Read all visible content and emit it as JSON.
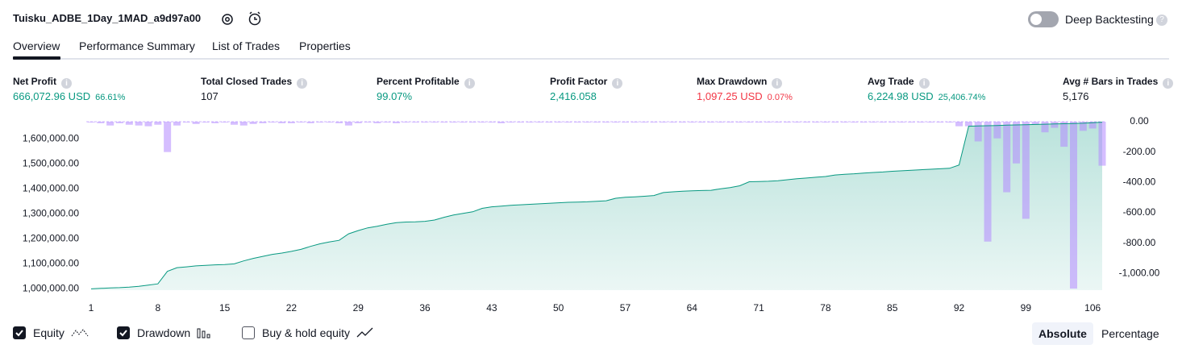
{
  "header": {
    "title": "Tuisku_ADBE_1Day_1MAD_a9d97a00",
    "deep_backtesting": "Deep Backtesting"
  },
  "tabs": [
    "Overview",
    "Performance Summary",
    "List of Trades",
    "Properties"
  ],
  "metrics": [
    {
      "label": "Net Profit",
      "value": "666,072.96 USD",
      "sub": "66.61%",
      "color": "#089981"
    },
    {
      "label": "Total Closed Trades",
      "value": "107",
      "color": "#131722"
    },
    {
      "label": "Percent Profitable",
      "value": "99.07%",
      "color": "#089981"
    },
    {
      "label": "Profit Factor",
      "value": "2,416.058",
      "color": "#089981"
    },
    {
      "label": "Max Drawdown",
      "value": "1,097.25 USD",
      "sub": "0.07%",
      "color": "#f23645"
    },
    {
      "label": "Avg Trade",
      "value": "6,224.98 USD",
      "sub": "25,406.74%",
      "color": "#089981"
    },
    {
      "label": "Avg # Bars in Trades",
      "value": "5,176",
      "color": "#131722"
    }
  ],
  "chart_data": {
    "type": "line",
    "x": [
      1,
      2,
      3,
      4,
      5,
      6,
      7,
      8,
      9,
      10,
      11,
      12,
      13,
      14,
      15,
      16,
      17,
      18,
      19,
      20,
      21,
      22,
      23,
      24,
      25,
      26,
      27,
      28,
      29,
      30,
      31,
      32,
      33,
      34,
      35,
      36,
      37,
      38,
      39,
      40,
      41,
      42,
      43,
      44,
      45,
      46,
      47,
      48,
      49,
      50,
      51,
      52,
      53,
      54,
      55,
      56,
      57,
      58,
      59,
      60,
      61,
      62,
      63,
      64,
      65,
      66,
      67,
      68,
      69,
      70,
      71,
      72,
      73,
      74,
      75,
      76,
      77,
      78,
      79,
      80,
      81,
      82,
      83,
      84,
      85,
      86,
      87,
      88,
      89,
      90,
      91,
      92,
      93,
      94,
      95,
      96,
      97,
      98,
      99,
      100,
      101,
      102,
      103,
      104,
      105,
      106,
      107
    ],
    "xlim": [
      1,
      107
    ],
    "xticks": [
      1,
      8,
      15,
      22,
      29,
      36,
      43,
      50,
      57,
      64,
      71,
      78,
      85,
      92,
      99,
      106
    ],
    "ylim": [
      995000,
      1668000
    ],
    "yticks": [
      {
        "value": 1000000,
        "label": "1,000,000.00"
      },
      {
        "value": 1100000,
        "label": "1,100,000.00"
      },
      {
        "value": 1200000,
        "label": "1,200,000.00"
      },
      {
        "value": 1300000,
        "label": "1,300,000.00"
      },
      {
        "value": 1400000,
        "label": "1,400,000.00"
      },
      {
        "value": 1500000,
        "label": "1,500,000.00"
      },
      {
        "value": 1600000,
        "label": "1,600,000.00"
      }
    ],
    "y2lim": [
      -1110,
      0
    ],
    "y2ticks": [
      {
        "value": 0,
        "label": "0.00"
      },
      {
        "value": -200,
        "label": "-200.00"
      },
      {
        "value": -400,
        "label": "-400.00"
      },
      {
        "value": -600,
        "label": "-600.00"
      },
      {
        "value": -800,
        "label": "-800.00"
      },
      {
        "value": -1000,
        "label": "-1,000.00"
      }
    ],
    "series": [
      {
        "name": "Equity",
        "color": "#089981",
        "checked": true,
        "values": [
          1000000,
          1002000,
          1004000,
          1005000,
          1007000,
          1010000,
          1015000,
          1020000,
          1070000,
          1085000,
          1088000,
          1092000,
          1094000,
          1096000,
          1097000,
          1100000,
          1112000,
          1122000,
          1130000,
          1138000,
          1143000,
          1150000,
          1158000,
          1170000,
          1180000,
          1188000,
          1194000,
          1220000,
          1233000,
          1244000,
          1250000,
          1258000,
          1265000,
          1267000,
          1268000,
          1270000,
          1275000,
          1286000,
          1295000,
          1302000,
          1308000,
          1322000,
          1328000,
          1331000,
          1334000,
          1336000,
          1338000,
          1340000,
          1342000,
          1344000,
          1346000,
          1347000,
          1348000,
          1350000,
          1352000,
          1362000,
          1366000,
          1368000,
          1370000,
          1373000,
          1385000,
          1388000,
          1390000,
          1392000,
          1393000,
          1394000,
          1400000,
          1405000,
          1412000,
          1428000,
          1429000,
          1430000,
          1432000,
          1436000,
          1440000,
          1443000,
          1446000,
          1449000,
          1455000,
          1458000,
          1460000,
          1463000,
          1465000,
          1467000,
          1470000,
          1472000,
          1474000,
          1476000,
          1478000,
          1480000,
          1482000,
          1495000,
          1650000,
          1651000,
          1652000,
          1653000,
          1654000,
          1655000,
          1656000,
          1657000,
          1658000,
          1659000,
          1660000,
          1661000,
          1662000,
          1664000,
          1666073
        ]
      },
      {
        "name": "Drawdown",
        "color": "#b388ff",
        "axis": "y2",
        "checked": true,
        "values": [
          -5,
          -10,
          -25,
          -10,
          -20,
          -25,
          -30,
          -20,
          -200,
          -25,
          -5,
          -15,
          -5,
          -10,
          -5,
          -20,
          -25,
          -15,
          -10,
          -5,
          -10,
          -10,
          -5,
          -10,
          -5,
          -5,
          -10,
          -25,
          -10,
          -5,
          -10,
          -5,
          -10,
          -5,
          -5,
          -5,
          -5,
          -5,
          -5,
          -5,
          -5,
          -5,
          -5,
          -10,
          -5,
          -5,
          -5,
          -5,
          -5,
          -5,
          -5,
          -5,
          -5,
          -5,
          -5,
          -5,
          -5,
          -5,
          -5,
          -5,
          -5,
          -5,
          -5,
          -5,
          -5,
          -5,
          -5,
          -5,
          -5,
          -5,
          -5,
          -5,
          -5,
          -5,
          -5,
          -5,
          -5,
          -5,
          -5,
          -5,
          -5,
          -5,
          -5,
          -5,
          -5,
          -5,
          -5,
          -5,
          -5,
          -5,
          -5,
          -30,
          -30,
          -130,
          -790,
          -110,
          -465,
          -275,
          -640,
          -20,
          -70,
          -40,
          -165,
          -1100,
          -60,
          -45,
          -290
        ]
      },
      {
        "name": "Buy & hold equity",
        "checked": false
      }
    ]
  },
  "view_toggle": {
    "options": [
      "Absolute",
      "Percentage"
    ],
    "active": 0
  }
}
